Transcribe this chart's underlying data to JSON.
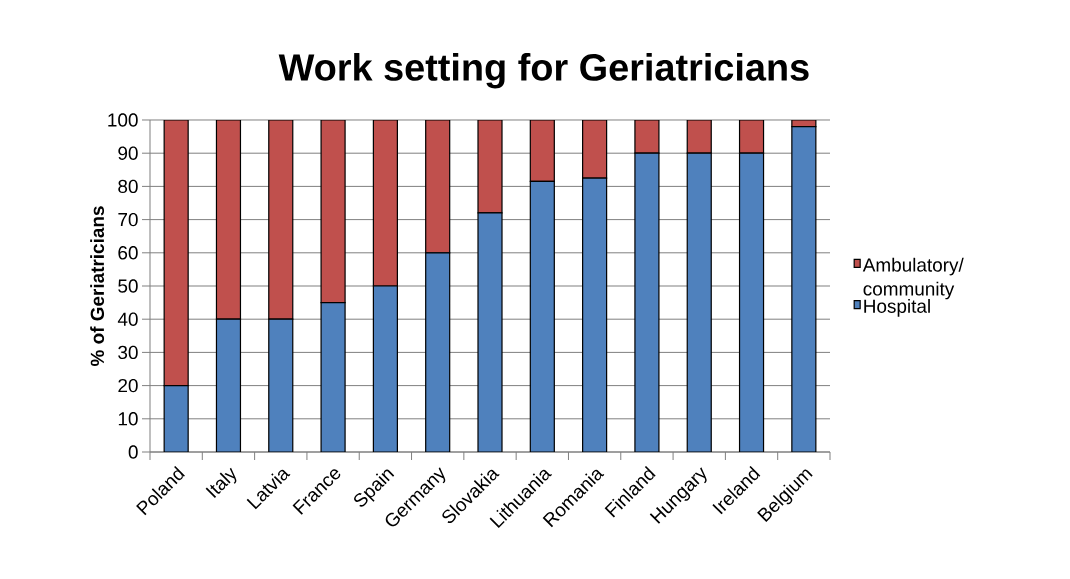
{
  "chart_data": {
    "type": "bar",
    "title": "Work setting for Geriatricians",
    "ylabel": "% of Geriatricians",
    "categories": [
      "Poland",
      "Italy",
      "Latvia",
      "France",
      "Spain",
      "Germany",
      "Slovakia",
      "Lithuania",
      "Romania",
      "Finland",
      "Hungary",
      "Ireland",
      "Belgium"
    ],
    "series": [
      {
        "name": "Hospital",
        "color": "#4f81bd",
        "values": [
          20,
          40,
          40,
          45,
          50,
          60,
          72,
          81.5,
          82.5,
          90,
          90,
          90,
          98
        ]
      },
      {
        "name": "Ambulatory/ community",
        "color": "#c0504d",
        "values": [
          80,
          60,
          60,
          55,
          50,
          40,
          28,
          18.5,
          17.5,
          10,
          10,
          10,
          2
        ]
      }
    ],
    "stacked": true,
    "ylim": [
      0,
      100
    ],
    "yticks": [
      0,
      10,
      20,
      30,
      40,
      50,
      60,
      70,
      80,
      90,
      100
    ],
    "grid": "y",
    "legend": "right"
  }
}
